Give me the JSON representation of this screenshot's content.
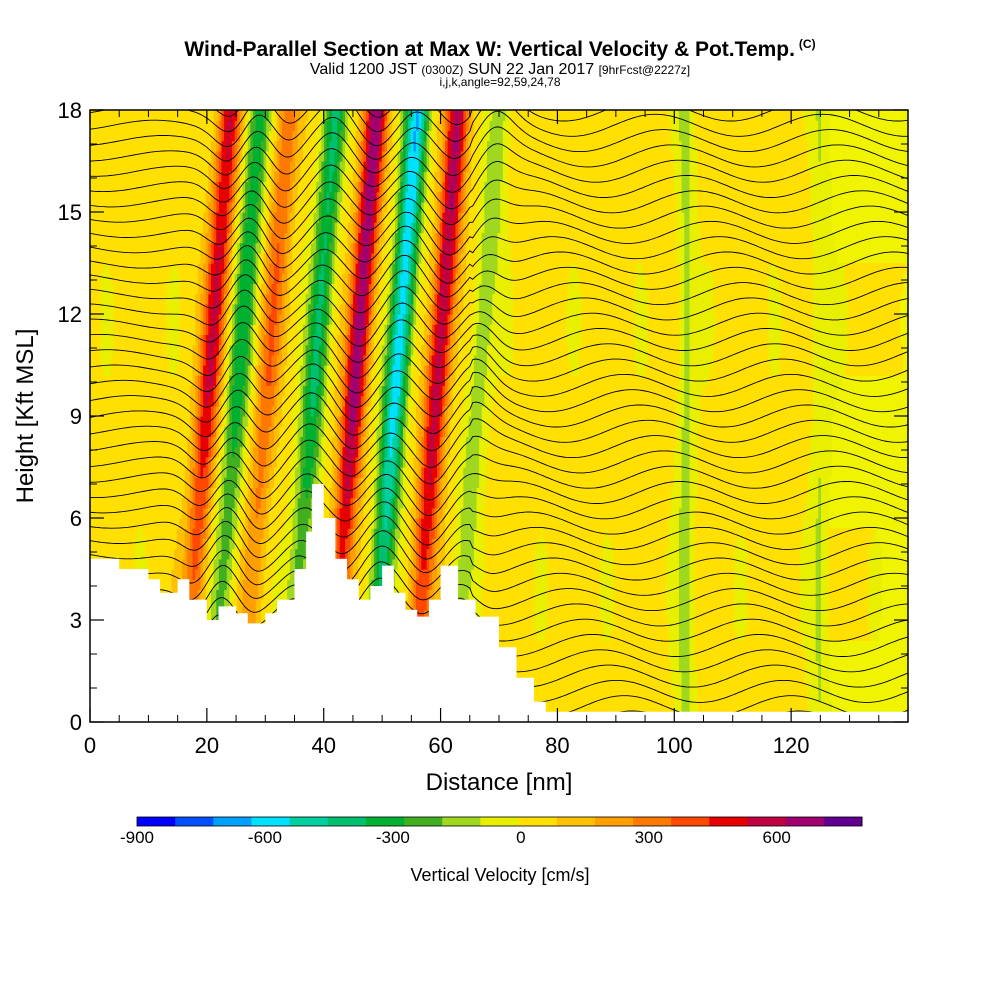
{
  "header": {
    "title": "Wind-Parallel Section at Max W: Vertical Velocity & Pot.Temp.",
    "copyright": "(C)",
    "valid_prefix": "Valid 1200 JST",
    "valid_utc": "(0300Z)",
    "valid_date": "SUN 22 Jan 2017",
    "forecast": "[9hrFcst@2227z]",
    "indices": "i,j,k,angle=92,59,24,78"
  },
  "chart_data": {
    "type": "heatmap",
    "title": "Wind-Parallel Section at Max W: Vertical Velocity & Pot.Temp.",
    "xlabel": "Distance [nm]",
    "ylabel": "Height [Kft MSL]",
    "xlim": [
      0,
      140
    ],
    "ylim": [
      0,
      18
    ],
    "x_ticks": [
      "0",
      "20",
      "40",
      "60",
      "80",
      "100",
      "120"
    ],
    "y_ticks": [
      "0",
      "3",
      "6",
      "9",
      "12",
      "15",
      "18"
    ],
    "colorbar": {
      "label": "Vertical Velocity [cm/s]",
      "tick_labels": [
        "-900",
        "-600",
        "-300",
        "0",
        "300",
        "600"
      ],
      "range": [
        -900,
        800
      ],
      "colors": [
        "#0000ff",
        "#0050ff",
        "#00a0ff",
        "#00e0ff",
        "#00d0a0",
        "#00c070",
        "#00b030",
        "#40b020",
        "#a0d820",
        "#e8f000",
        "#ffe000",
        "#ffc000",
        "#ffa000",
        "#ff7800",
        "#ff4800",
        "#e80000",
        "#c00040",
        "#a00070",
        "#600090"
      ]
    },
    "terrain_profile": {
      "x": [
        0,
        5,
        10,
        12,
        15,
        17,
        20,
        22,
        25,
        27,
        30,
        32,
        35,
        37,
        38,
        40,
        42,
        44,
        46,
        48,
        50,
        52,
        54,
        56,
        58,
        60,
        63,
        66,
        70,
        73,
        76,
        78,
        80,
        140
      ],
      "height": [
        4.8,
        4.5,
        4.2,
        3.8,
        4.2,
        3.6,
        3.0,
        3.4,
        3.2,
        2.9,
        3.2,
        3.6,
        4.5,
        5.6,
        7.0,
        6.0,
        4.8,
        4.2,
        3.6,
        4.0,
        4.6,
        3.8,
        3.3,
        3.1,
        3.6,
        4.6,
        3.6,
        3.1,
        2.2,
        1.3,
        0.6,
        0.3,
        0.3,
        0.3
      ]
    },
    "vertical_velocity_bands": [
      {
        "x": 20,
        "max_cm_s": 500
      },
      {
        "x": 25,
        "max_cm_s": -350
      },
      {
        "x": 30,
        "max_cm_s": 300
      },
      {
        "x": 38,
        "max_cm_s": -400
      },
      {
        "x": 45,
        "max_cm_s": 650
      },
      {
        "x": 52,
        "max_cm_s": -650
      },
      {
        "x": 59,
        "max_cm_s": 600
      },
      {
        "x": 66,
        "max_cm_s": -200
      },
      {
        "x": 102,
        "max_cm_s": -150
      },
      {
        "x": 125,
        "max_cm_s": -120
      }
    ]
  }
}
